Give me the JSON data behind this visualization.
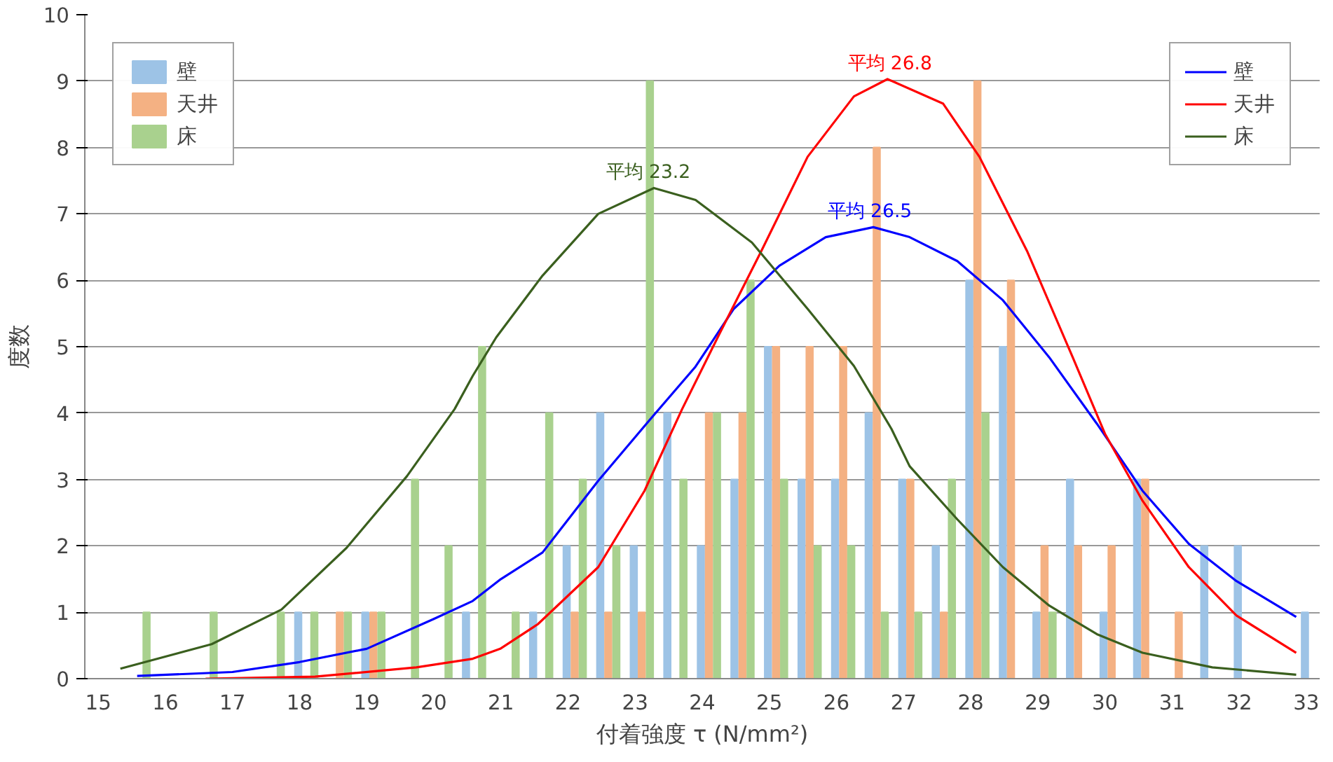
{
  "chart_data": {
    "type": "bar",
    "xlabel": "付着強度 τ (N/mm²)",
    "ylabel": "度数",
    "x": [
      15.6,
      16.1,
      16.6,
      17.1,
      17.6,
      18.1,
      18.6,
      19.1,
      19.6,
      20.1,
      20.6,
      21.1,
      21.6,
      22.1,
      22.6,
      23.1,
      23.6,
      24.1,
      24.6,
      25.1,
      25.6,
      26.1,
      26.6,
      27.1,
      27.6,
      28.1,
      28.6,
      29.1,
      29.6,
      30.1,
      30.6,
      31.1,
      31.6,
      32.1,
      32.6,
      33.1
    ],
    "series": [
      {
        "name": "壁",
        "color": "#9dc3e6",
        "values": [
          0,
          0,
          0,
          0,
          0,
          1,
          0,
          1,
          0,
          0,
          1,
          0,
          1,
          2,
          4,
          2,
          4,
          2,
          3,
          5,
          3,
          3,
          4,
          3,
          2,
          6,
          5,
          1,
          3,
          1,
          3,
          0,
          2,
          2,
          0,
          1
        ]
      },
      {
        "name": "天井",
        "color": "#f4b183",
        "values": [
          0,
          0,
          0,
          0,
          0,
          0,
          1,
          1,
          0,
          0,
          0,
          0,
          0,
          1,
          1,
          1,
          0,
          4,
          4,
          5,
          5,
          5,
          8,
          3,
          1,
          9,
          6,
          2,
          2,
          2,
          3,
          1,
          0,
          0,
          0,
          0
        ]
      },
      {
        "name": "床",
        "color": "#a9d18e",
        "values": [
          1,
          0,
          1,
          0,
          1,
          1,
          1,
          1,
          3,
          2,
          5,
          1,
          4,
          3,
          2,
          9,
          3,
          4,
          6,
          3,
          2,
          2,
          1,
          1,
          3,
          4,
          0,
          1,
          0,
          0,
          0,
          0,
          0,
          0,
          0,
          0
        ]
      },
      {
        "name": "壁",
        "type": "line",
        "color": "#0000ff",
        "x": [
          15.58,
          17.0,
          18.0,
          19.0,
          20.0,
          20.58,
          21.0,
          21.62,
          22.45,
          23.22,
          23.9,
          24.47,
          25.15,
          25.84,
          26.55,
          27.09,
          27.8,
          28.48,
          29.17,
          29.88,
          30.56,
          31.25,
          31.96,
          32.85
        ],
        "values": [
          0.04,
          0.1,
          0.25,
          0.45,
          0.9,
          1.17,
          1.5,
          1.9,
          2.98,
          3.9,
          4.7,
          5.57,
          6.22,
          6.65,
          6.8,
          6.65,
          6.29,
          5.7,
          4.84,
          3.84,
          2.83,
          2.03,
          1.47,
          0.93
        ]
      },
      {
        "name": "天井",
        "type": "line",
        "color": "#ff0000",
        "x": [
          16.6,
          18.23,
          19.74,
          20.58,
          20.99,
          21.55,
          22.45,
          23.14,
          23.7,
          24.26,
          24.88,
          25.57,
          26.26,
          26.76,
          27.59,
          28.13,
          28.84,
          29.52,
          30.0,
          30.56,
          31.25,
          31.96,
          32.85
        ],
        "values": [
          0.0,
          0.03,
          0.17,
          0.3,
          0.45,
          0.82,
          1.68,
          2.83,
          4.06,
          5.2,
          6.44,
          7.86,
          8.77,
          9.03,
          8.66,
          7.86,
          6.44,
          4.84,
          3.69,
          2.68,
          1.68,
          0.95,
          0.39
        ]
      },
      {
        "name": "床",
        "type": "line",
        "color": "#3a5f1e",
        "x": [
          15.33,
          16.69,
          17.73,
          18.7,
          19.6,
          20.31,
          20.58,
          20.93,
          21.62,
          22.45,
          23.28,
          23.9,
          24.74,
          25.57,
          26.26,
          26.82,
          27.09,
          27.8,
          28.48,
          29.17,
          29.88,
          30.56,
          31.6,
          32.85
        ],
        "values": [
          0.15,
          0.52,
          1.04,
          1.97,
          3.05,
          4.06,
          4.56,
          5.14,
          6.07,
          7.0,
          7.39,
          7.21,
          6.57,
          5.57,
          4.71,
          3.76,
          3.2,
          2.4,
          1.68,
          1.1,
          0.67,
          0.39,
          0.17,
          0.06
        ]
      }
    ],
    "annotations": [
      {
        "text": "平均 26.5",
        "x": 26.5,
        "y": 6.8
      },
      {
        "text": "平均 26.8",
        "x": 26.8,
        "y": 9.03
      },
      {
        "text": "平均 23.2",
        "x": 23.2,
        "y": 7.39
      }
    ],
    "xlim": [
      14.8,
      33.2
    ],
    "ylim": [
      0,
      10
    ],
    "xticks": [
      15,
      16,
      17,
      18,
      19,
      20,
      21,
      22,
      23,
      24,
      25,
      26,
      27,
      28,
      29,
      30,
      31,
      32,
      33
    ],
    "yticks": [
      0,
      1,
      2,
      3,
      4,
      5,
      6,
      7,
      8,
      9,
      10
    ],
    "grid": "y",
    "legend": [
      "top left",
      "top right"
    ]
  }
}
